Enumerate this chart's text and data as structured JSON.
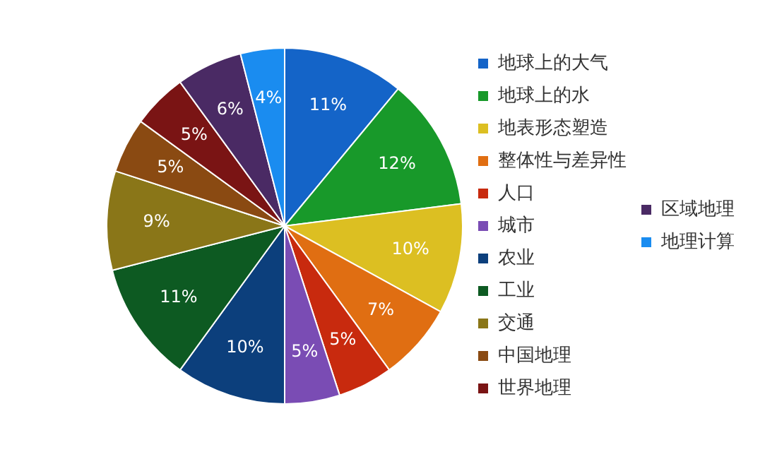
{
  "chart_data": {
    "type": "pie",
    "categories": [
      "地球上的大气",
      "地球上的水",
      "地表形态塑造",
      "整体性与差异性",
      "人口",
      "城市",
      "农业",
      "工业",
      "交通",
      "中国地理",
      "世界地理",
      "区域地理",
      "地理计算"
    ],
    "values": [
      11,
      12,
      10,
      7,
      5,
      5,
      10,
      11,
      9,
      5,
      5,
      6,
      4
    ],
    "value_labels": [
      "11%",
      "12%",
      "10%",
      "7%",
      "5%",
      "5%",
      "10%",
      "11%",
      "9%",
      "5%",
      "5%",
      "6%",
      "4%"
    ],
    "colors": [
      "#1464c8",
      "#18992a",
      "#dcbf22",
      "#e06e12",
      "#c82a0e",
      "#7a4cb4",
      "#0c3f7c",
      "#0d5a22",
      "#8a7618",
      "#8a4a12",
      "#7a1414",
      "#4a2a64",
      "#1a8cf0"
    ],
    "legend": "right"
  }
}
